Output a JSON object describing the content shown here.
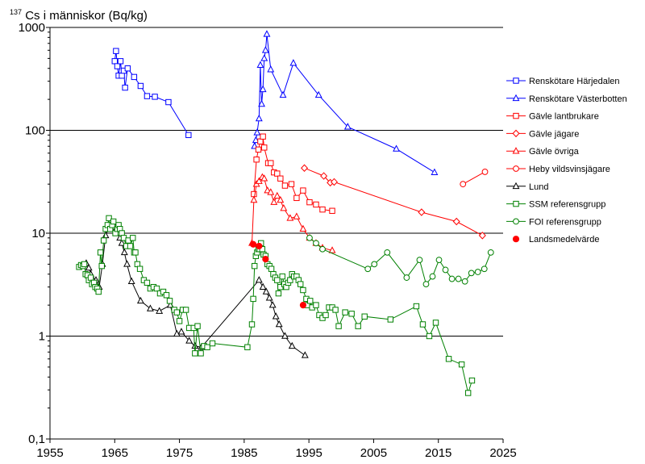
{
  "chart_data": {
    "type": "line",
    "y_title": {
      "sup": "137",
      "text": "Cs i människor (Bq/kg)"
    },
    "y_scale": "log",
    "ylim": [
      0.1,
      1000
    ],
    "xlim": [
      1955,
      2025
    ],
    "x_ticks": [
      1955,
      1965,
      1975,
      1985,
      1995,
      2005,
      2015,
      2025
    ],
    "y_ticks": [
      {
        "value": 1000,
        "label": "1000"
      },
      {
        "value": 100,
        "label": "100"
      },
      {
        "value": 10,
        "label": "10"
      },
      {
        "value": 1,
        "label": "1"
      },
      {
        "value": 0.1,
        "label": "0,1"
      }
    ],
    "grid": "horizontal major lines",
    "legend_position": "right",
    "series": [
      {
        "name": "Renskötare Härjedalen",
        "color": "#0000ff",
        "marker": "square",
        "line": true,
        "points": [
          [
            1965,
            470
          ],
          [
            1965.2,
            590
          ],
          [
            1965.4,
            420
          ],
          [
            1965.6,
            340
          ],
          [
            1965.9,
            470
          ],
          [
            1966.1,
            340
          ],
          [
            1966.4,
            380
          ],
          [
            1966.6,
            260
          ],
          [
            1967,
            400
          ],
          [
            1968,
            330
          ],
          [
            1969,
            270
          ],
          [
            1970,
            215
          ],
          [
            1971.2,
            212
          ],
          [
            1973.3,
            188
          ],
          [
            1976.4,
            90
          ]
        ]
      },
      {
        "name": "Renskötare Västerbotten",
        "color": "#0000ff",
        "marker": "triangle",
        "line": true,
        "points": [
          [
            1986.6,
            70
          ],
          [
            1986.8,
            80
          ],
          [
            1987,
            95
          ],
          [
            1987.3,
            130
          ],
          [
            1987.5,
            430
          ],
          [
            1987.7,
            180
          ],
          [
            1987.9,
            250
          ],
          [
            1988.1,
            500
          ],
          [
            1988.3,
            600
          ],
          [
            1988.5,
            860
          ],
          [
            1989.1,
            390
          ],
          [
            1991,
            220
          ],
          [
            1992.6,
            450
          ],
          [
            1996.5,
            220
          ],
          [
            2001,
            108
          ],
          [
            2008.5,
            66
          ],
          [
            2014.4,
            39
          ]
        ]
      },
      {
        "name": "Gävle lantbrukare",
        "color": "#ff0000",
        "marker": "square",
        "line": true,
        "points": [
          [
            1986.5,
            24
          ],
          [
            1986.9,
            52
          ],
          [
            1987.2,
            65
          ],
          [
            1987.5,
            78
          ],
          [
            1987.9,
            87
          ],
          [
            1988.1,
            68
          ],
          [
            1988.7,
            48
          ],
          [
            1989.1,
            48
          ],
          [
            1989.6,
            39
          ],
          [
            1990.1,
            38
          ],
          [
            1990.6,
            34
          ],
          [
            1991.3,
            29
          ],
          [
            1992.3,
            30
          ],
          [
            1993.1,
            22
          ],
          [
            1994.1,
            26
          ],
          [
            1995.1,
            20
          ],
          [
            1996.1,
            19
          ],
          [
            1997.1,
            17
          ],
          [
            1998.6,
            16.5
          ]
        ]
      },
      {
        "name": "Gävle jägare",
        "color": "#ff0000",
        "marker": "diamond",
        "line": true,
        "points": [
          [
            1994.3,
            43
          ],
          [
            1997.3,
            36
          ],
          [
            1998.3,
            31
          ],
          [
            1998.9,
            31.5
          ],
          [
            2012.4,
            16
          ],
          [
            2017.8,
            13
          ],
          [
            2021.8,
            9.5
          ]
        ]
      },
      {
        "name": "Gävle övriga",
        "color": "#ff0000",
        "marker": "triangle",
        "line": true,
        "points": [
          [
            1986.2,
            8
          ],
          [
            1986.5,
            21
          ],
          [
            1986.9,
            30
          ],
          [
            1987.3,
            32
          ],
          [
            1987.8,
            35
          ],
          [
            1988.1,
            34
          ],
          [
            1988.6,
            26
          ],
          [
            1989.1,
            25
          ],
          [
            1989.6,
            20
          ],
          [
            1990.1,
            23
          ],
          [
            1990.6,
            21
          ],
          [
            1991.1,
            17.5
          ],
          [
            1992.1,
            14
          ],
          [
            1993.1,
            14.5
          ],
          [
            1994.1,
            11
          ],
          [
            1995.1,
            9
          ],
          [
            1996.1,
            8
          ],
          [
            1997.1,
            7.2
          ],
          [
            1998.6,
            6.8
          ]
        ]
      },
      {
        "name": "Heby vildsvinsjägare",
        "color": "#ff0000",
        "marker": "circle",
        "line": true,
        "points": [
          [
            2018.8,
            30
          ],
          [
            2022.2,
            39.5
          ]
        ]
      },
      {
        "name": "Lund",
        "color": "#000000",
        "marker": "triangle",
        "line": true,
        "points": [
          [
            1960.6,
            5.1
          ],
          [
            1961,
            4.6
          ],
          [
            1961.3,
            4.0
          ],
          [
            1961.6,
            3.6
          ],
          [
            1961.8,
            3.2
          ],
          [
            1962.1,
            3.5
          ],
          [
            1962.6,
            3.0
          ],
          [
            1963.1,
            5.0
          ],
          [
            1963.6,
            9.5
          ],
          [
            1964,
            11
          ],
          [
            1964.3,
            11.5
          ],
          [
            1964.6,
            12.5
          ],
          [
            1964.9,
            12
          ],
          [
            1965.2,
            11
          ],
          [
            1965.5,
            10
          ],
          [
            1965.8,
            9
          ],
          [
            1966.1,
            8
          ],
          [
            1966.5,
            6.5
          ],
          [
            1966.9,
            5
          ],
          [
            1967.6,
            3.4
          ],
          [
            1969,
            2.2
          ],
          [
            1970.5,
            1.85
          ],
          [
            1971.9,
            1.75
          ],
          [
            1973.6,
            2.0
          ],
          [
            1974.6,
            1.05
          ],
          [
            1975.3,
            1.1
          ],
          [
            1976.5,
            0.9
          ],
          [
            1977.4,
            0.8
          ],
          [
            1978.4,
            0.78
          ],
          [
            1987.3,
            3.5
          ],
          [
            1987.9,
            3.0
          ],
          [
            1988.4,
            2.7
          ],
          [
            1988.9,
            2.35
          ],
          [
            1989.4,
            2.0
          ],
          [
            1989.9,
            1.55
          ],
          [
            1990.4,
            1.3
          ],
          [
            1991.3,
            1.0
          ],
          [
            1992.4,
            0.8
          ],
          [
            1994.4,
            0.65
          ]
        ]
      },
      {
        "name": "SSM referensgrupp",
        "color": "#008000",
        "marker": "square",
        "line": true,
        "points": [
          [
            1959.5,
            4.7
          ],
          [
            1959.8,
            4.9
          ],
          [
            1960.1,
            4.8
          ],
          [
            1960.3,
            5
          ],
          [
            1960.5,
            4
          ],
          [
            1960.8,
            3.9
          ],
          [
            1961,
            3.5
          ],
          [
            1961.3,
            3.7
          ],
          [
            1961.5,
            3.2
          ],
          [
            1961.8,
            3.3
          ],
          [
            1962,
            3
          ],
          [
            1962.3,
            2.9
          ],
          [
            1962.5,
            2.7
          ],
          [
            1962.8,
            6.5
          ],
          [
            1963,
            4.8
          ],
          [
            1963.3,
            8.5
          ],
          [
            1963.6,
            11
          ],
          [
            1963.9,
            12
          ],
          [
            1964.1,
            14
          ],
          [
            1964.3,
            11
          ],
          [
            1964.6,
            12
          ],
          [
            1964.8,
            13
          ],
          [
            1965.1,
            10
          ],
          [
            1965.4,
            11
          ],
          [
            1965.6,
            12
          ],
          [
            1965.8,
            11
          ],
          [
            1966.1,
            10
          ],
          [
            1966.4,
            9
          ],
          [
            1966.8,
            7.5
          ],
          [
            1967.1,
            8.5
          ],
          [
            1967.4,
            7.5
          ],
          [
            1967.8,
            9
          ],
          [
            1968,
            6.5
          ],
          [
            1968.2,
            6.5
          ],
          [
            1968.5,
            5
          ],
          [
            1968.9,
            4.5
          ],
          [
            1969.5,
            3.5
          ],
          [
            1970,
            3.3
          ],
          [
            1970.5,
            2.9
          ],
          [
            1971,
            3.0
          ],
          [
            1971.5,
            2.9
          ],
          [
            1972,
            2.6
          ],
          [
            1972.5,
            2.7
          ],
          [
            1973,
            2.5
          ],
          [
            1973.5,
            2.2
          ],
          [
            1974.2,
            1.8
          ],
          [
            1974.6,
            1.7
          ],
          [
            1975,
            1.4
          ],
          [
            1975.5,
            1.8
          ],
          [
            1976,
            1.8
          ],
          [
            1976.5,
            1.2
          ],
          [
            1977.2,
            1.2
          ],
          [
            1977.4,
            0.68
          ],
          [
            1977.8,
            1.25
          ],
          [
            1978.3,
            0.68
          ],
          [
            1978.8,
            0.8
          ],
          [
            1979.3,
            0.78
          ],
          [
            1980.1,
            0.85
          ],
          [
            1985.5,
            0.78
          ],
          [
            1986.2,
            1.3
          ],
          [
            1986.4,
            2.3
          ],
          [
            1986.6,
            4.8
          ],
          [
            1986.8,
            6
          ],
          [
            1987,
            6.5
          ],
          [
            1987.2,
            7
          ],
          [
            1987.4,
            7
          ],
          [
            1987.6,
            8
          ],
          [
            1987.8,
            7
          ],
          [
            1988,
            6.2
          ],
          [
            1988.3,
            6
          ],
          [
            1988.6,
            5
          ],
          [
            1988.9,
            4.8
          ],
          [
            1989.2,
            4.5
          ],
          [
            1989.5,
            4
          ],
          [
            1989.8,
            3.7
          ],
          [
            1990.1,
            3.5
          ],
          [
            1990.3,
            2.6
          ],
          [
            1990.6,
            3.0
          ],
          [
            1990.9,
            3.8
          ],
          [
            1991.2,
            3.2
          ],
          [
            1991.5,
            3.0
          ],
          [
            1991.8,
            3.3
          ],
          [
            1992.1,
            3.5
          ],
          [
            1992.4,
            4
          ],
          [
            1992.7,
            3.8
          ],
          [
            1993.1,
            3.8
          ],
          [
            1993.4,
            3.5
          ],
          [
            1993.7,
            3.2
          ],
          [
            1994.1,
            2.8
          ],
          [
            1994.6,
            2.3
          ],
          [
            1994.8,
            2.0
          ],
          [
            1995.2,
            2.2
          ],
          [
            1995.5,
            1.9
          ],
          [
            1996.1,
            2.0
          ],
          [
            1996.6,
            1.6
          ],
          [
            1997.1,
            1.5
          ],
          [
            1997.6,
            1.6
          ],
          [
            1998.1,
            1.9
          ],
          [
            1998.6,
            1.9
          ],
          [
            1999.1,
            1.8
          ],
          [
            1999.6,
            1.25
          ],
          [
            2000.6,
            1.7
          ],
          [
            2001.6,
            1.65
          ],
          [
            2002.6,
            1.25
          ],
          [
            2003.6,
            1.55
          ],
          [
            2007.6,
            1.45
          ],
          [
            2011.6,
            1.95
          ],
          [
            2012.6,
            1.3
          ],
          [
            2013.6,
            1.0
          ],
          [
            2014.6,
            1.35
          ],
          [
            2016.6,
            0.6
          ],
          [
            2018.6,
            0.53
          ],
          [
            2019.6,
            0.28
          ],
          [
            2020.2,
            0.37
          ]
        ]
      },
      {
        "name": "FOI referensgrupp",
        "color": "#008000",
        "marker": "circle",
        "line": true,
        "points": [
          [
            1995.1,
            9
          ],
          [
            1996.1,
            8
          ],
          [
            1997.1,
            7
          ],
          [
            2004.1,
            4.5
          ],
          [
            2005.1,
            5
          ],
          [
            2007.1,
            6.5
          ],
          [
            2010.1,
            3.7
          ],
          [
            2012.1,
            5.5
          ],
          [
            2013.1,
            3.2
          ],
          [
            2014.1,
            3.8
          ],
          [
            2015.1,
            5.5
          ],
          [
            2016.1,
            4.4
          ],
          [
            2017.1,
            3.6
          ],
          [
            2018.1,
            3.6
          ],
          [
            2019.1,
            3.4
          ],
          [
            2020.1,
            4.1
          ],
          [
            2021.1,
            4.2
          ],
          [
            2022.1,
            4.5
          ],
          [
            2023.1,
            6.5
          ]
        ]
      },
      {
        "name": "Landsmedelvärde",
        "color": "#ff0000",
        "marker": "dot",
        "line": false,
        "points": [
          [
            1986.4,
            7.8
          ],
          [
            1987.3,
            7.5
          ],
          [
            1988.3,
            5.6
          ],
          [
            1994.1,
            2.0
          ]
        ]
      }
    ]
  }
}
